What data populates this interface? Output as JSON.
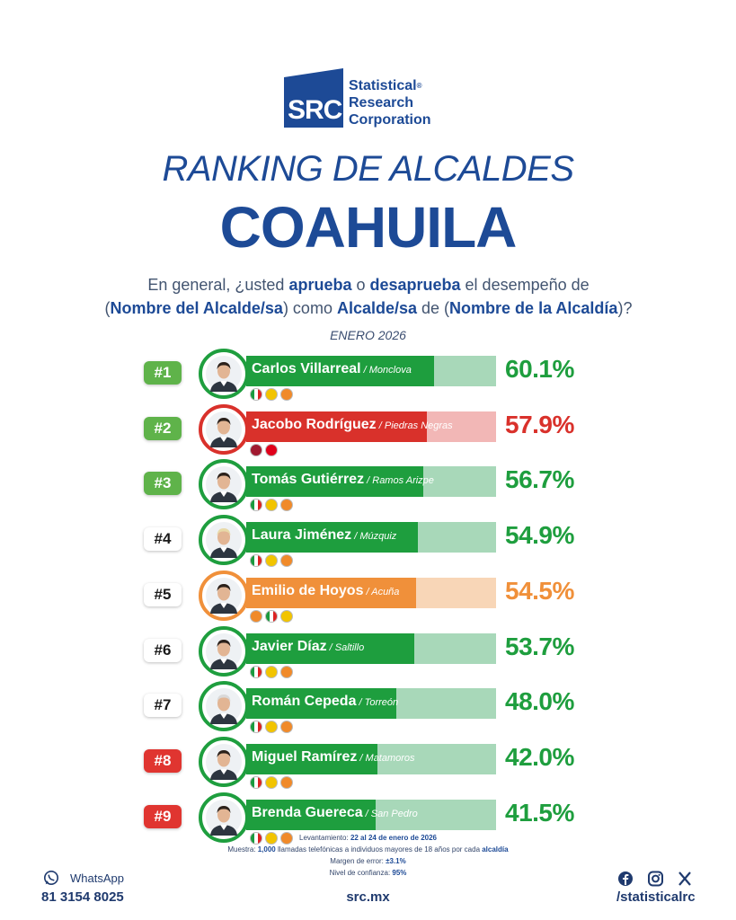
{
  "brand": {
    "logo_abbr": "SRC",
    "line1": "Statistical",
    "line2": "Research",
    "line3": "Corporation",
    "reg_mark": "®"
  },
  "title": "RANKING DE ALCALDES",
  "subtitle": "COAHUILA",
  "question": {
    "p1": "En general, ¿usted ",
    "b1": "aprueba",
    "p2": " o ",
    "b2": "desaprueba",
    "p3": " el desempeño de",
    "p4": "(",
    "b3": "Nombre del Alcalde/sa",
    "p5": ") como ",
    "b4": "Alcalde/sa",
    "p6": " de (",
    "b5": "Nombre de la Alcaldía",
    "p7": ")?"
  },
  "period": "ENERO 2026",
  "colors": {
    "green": "#1e9e3e",
    "green_light": "#a8d8b9",
    "red": "#d9312b",
    "red_light": "#f2b7b6",
    "orange": "#f0903a",
    "orange_light": "#f8d6b7",
    "rank_green": "#5fb34a",
    "rank_red": "#e03530"
  },
  "chart_data": {
    "type": "bar",
    "title": "RANKING DE ALCALDES",
    "categories": [
      "Carlos Villarreal",
      "Jacobo Rodríguez",
      "Tomás Gutiérrez",
      "Laura Jiménez",
      "Emilio de Hoyos",
      "Javier Díaz",
      "Román Cepeda",
      "Miguel Ramírez",
      "Brenda Guereca"
    ],
    "values": [
      60.1,
      57.9,
      56.7,
      54.9,
      54.5,
      53.7,
      48.0,
      42.0,
      41.5
    ],
    "ylim": [
      0,
      80
    ],
    "rows": [
      {
        "rank": "#1",
        "name": "Carlos Villarreal",
        "city": " / Monclova",
        "pct": "60.1%",
        "value": 60.1,
        "theme": "green",
        "rank_style": "green",
        "parties": [
          "pri",
          "pan",
          "udc"
        ]
      },
      {
        "rank": "#2",
        "name": "Jacobo Rodríguez",
        "city": " / Piedras Negras",
        "pct": "57.9%",
        "value": 57.9,
        "theme": "red",
        "rank_style": "green",
        "parties": [
          "morena",
          "pt"
        ]
      },
      {
        "rank": "#3",
        "name": "Tomás Gutiérrez",
        "city": " / Ramos Arizpe",
        "pct": "56.7%",
        "value": 56.7,
        "theme": "green",
        "rank_style": "green",
        "parties": [
          "pri",
          "pan",
          "udc"
        ]
      },
      {
        "rank": "#4",
        "name": "Laura Jiménez",
        "city": " / Múzquiz",
        "pct": "54.9%",
        "value": 54.9,
        "theme": "green",
        "rank_style": "white",
        "parties": [
          "pri",
          "pan",
          "udc"
        ]
      },
      {
        "rank": "#5",
        "name": "Emilio de Hoyos",
        "city": " / Acuña",
        "pct": "54.5%",
        "value": 54.5,
        "theme": "orange",
        "rank_style": "white",
        "parties": [
          "udc",
          "pri",
          "pan"
        ]
      },
      {
        "rank": "#6",
        "name": "Javier Díaz",
        "city": " / Saltillo",
        "pct": "53.7%",
        "value": 53.7,
        "theme": "green",
        "rank_style": "white",
        "parties": [
          "pri",
          "pan",
          "udc"
        ]
      },
      {
        "rank": "#7",
        "name": "Román Cepeda",
        "city": " / Torreón",
        "pct": "48.0%",
        "value": 48.0,
        "theme": "green",
        "rank_style": "white",
        "parties": [
          "pri",
          "pan",
          "udc"
        ]
      },
      {
        "rank": "#8",
        "name": "Miguel Ramírez",
        "city": " / Matamoros",
        "pct": "42.0%",
        "value": 42.0,
        "theme": "green",
        "rank_style": "red",
        "parties": [
          "pri",
          "pan",
          "udc"
        ]
      },
      {
        "rank": "#9",
        "name": "Brenda Guereca",
        "city": " / San Pedro",
        "pct": "41.5%",
        "value": 41.5,
        "theme": "green",
        "rank_style": "red",
        "parties": [
          "pri",
          "pan",
          "udc"
        ]
      }
    ]
  },
  "footnote": {
    "l1_label": "Levantamiento: ",
    "l1_value": "22 al 24 de enero de 2026",
    "l2_label": "Muestra: ",
    "l2_value": "1,000",
    "l2_text": " llamadas telefónicas a individuos mayores de 18 años por cada ",
    "l2_bold": "alcaldía",
    "l3_label": "Margen de error: ",
    "l3_value": "±3.1%",
    "l4_label": "Nivel de confianza: ",
    "l4_value": "95%"
  },
  "footer": {
    "whatsapp_label": "WhatsApp",
    "whatsapp_phone": "81 3154 8025",
    "website": "src.mx",
    "social_handle": "/statisticalrc",
    "icons": [
      "whatsapp-icon",
      "facebook-icon",
      "instagram-icon",
      "x-icon"
    ]
  }
}
